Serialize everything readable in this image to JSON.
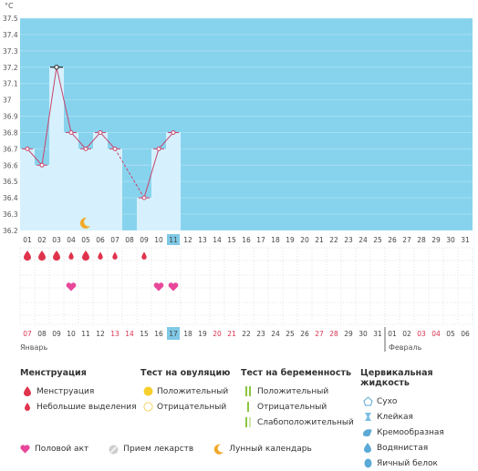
{
  "chart_data": {
    "type": "bar",
    "unit_label": "°C",
    "ylim": [
      36.2,
      37.5
    ],
    "y_ticks": [
      "37.5",
      "37.4",
      "37.3",
      "37.2",
      "37.1",
      "37",
      "36.9",
      "36.8",
      "36.7",
      "36.6",
      "36.5",
      "36.4",
      "36.3",
      "36.2"
    ],
    "x": [
      "01",
      "02",
      "03",
      "04",
      "05",
      "06",
      "07",
      "08",
      "09",
      "10",
      "11",
      "12",
      "13",
      "14",
      "15",
      "16",
      "17",
      "18",
      "19",
      "20",
      "21",
      "22",
      "23",
      "24",
      "25",
      "26",
      "27",
      "28",
      "29",
      "30",
      "31"
    ],
    "values": [
      36.7,
      36.6,
      37.2,
      36.8,
      36.7,
      36.8,
      36.7,
      null,
      36.4,
      36.7,
      36.8,
      null,
      null,
      null,
      null,
      null,
      null,
      null,
      null,
      null,
      null,
      null,
      null,
      null,
      null,
      null,
      null,
      null,
      null,
      null,
      null
    ],
    "interpolated_gap": [
      "07",
      "09"
    ],
    "highlight_day": "11",
    "marked_point_day": "03",
    "moon_day": "05",
    "menstruation_icons": [
      "large",
      "large",
      "large",
      "small",
      "large",
      "small",
      "small",
      "none",
      "small",
      "none",
      "none"
    ],
    "intercourse_days": [
      "04",
      "10",
      "11"
    ],
    "dates_bottom": [
      {
        "d": "07",
        "red": true
      },
      {
        "d": "08",
        "red": false
      },
      {
        "d": "09",
        "red": false
      },
      {
        "d": "10",
        "red": false
      },
      {
        "d": "11",
        "red": false
      },
      {
        "d": "12",
        "red": false
      },
      {
        "d": "13",
        "red": true
      },
      {
        "d": "14",
        "red": true
      },
      {
        "d": "15",
        "red": false
      },
      {
        "d": "16",
        "red": false
      },
      {
        "d": "17",
        "red": false,
        "hl": true
      },
      {
        "d": "18",
        "red": false
      },
      {
        "d": "19",
        "red": false
      },
      {
        "d": "20",
        "red": true
      },
      {
        "d": "21",
        "red": true
      },
      {
        "d": "22",
        "red": false
      },
      {
        "d": "23",
        "red": false
      },
      {
        "d": "24",
        "red": false
      },
      {
        "d": "25",
        "red": false
      },
      {
        "d": "26",
        "red": false
      },
      {
        "d": "27",
        "red": true
      },
      {
        "d": "28",
        "red": true
      },
      {
        "d": "29",
        "red": false
      },
      {
        "d": "30",
        "red": false
      },
      {
        "d": "31",
        "red": false
      },
      {
        "d": "01",
        "red": false
      },
      {
        "d": "02",
        "red": false
      },
      {
        "d": "03",
        "red": true
      },
      {
        "d": "04",
        "red": true
      },
      {
        "d": "05",
        "red": false
      },
      {
        "d": "06",
        "red": false
      }
    ],
    "month_labels": [
      "Январь",
      "Февраль"
    ]
  },
  "colors": {
    "sky": "#87d3ee",
    "bar": "#d6f1fd",
    "line": "#c8446c",
    "weekend": "#d9314f",
    "highlight": "#7fc9e6",
    "heart": "#e8479a",
    "drop": "#e0334c"
  },
  "legend": {
    "menstruation": {
      "title": "Менструация",
      "items": [
        "Менструация",
        "Небольшие выделения"
      ]
    },
    "ovulation": {
      "title": "Тест на овуляцию",
      "items": [
        "Положительный",
        "Отрицательный"
      ]
    },
    "pregnancy": {
      "title": "Тест на беременность",
      "items": [
        "Положительный",
        "Отрицательный",
        "Слабоположительный"
      ]
    },
    "cervical": {
      "title": "Цервикальная жидкость",
      "items": [
        "Сухо",
        "Клейкая",
        "Кремообразная",
        "Водянистая",
        "Яичный белок"
      ]
    },
    "bottom": [
      "Половой акт",
      "Прием лекарств",
      "Лунный календарь"
    ]
  }
}
